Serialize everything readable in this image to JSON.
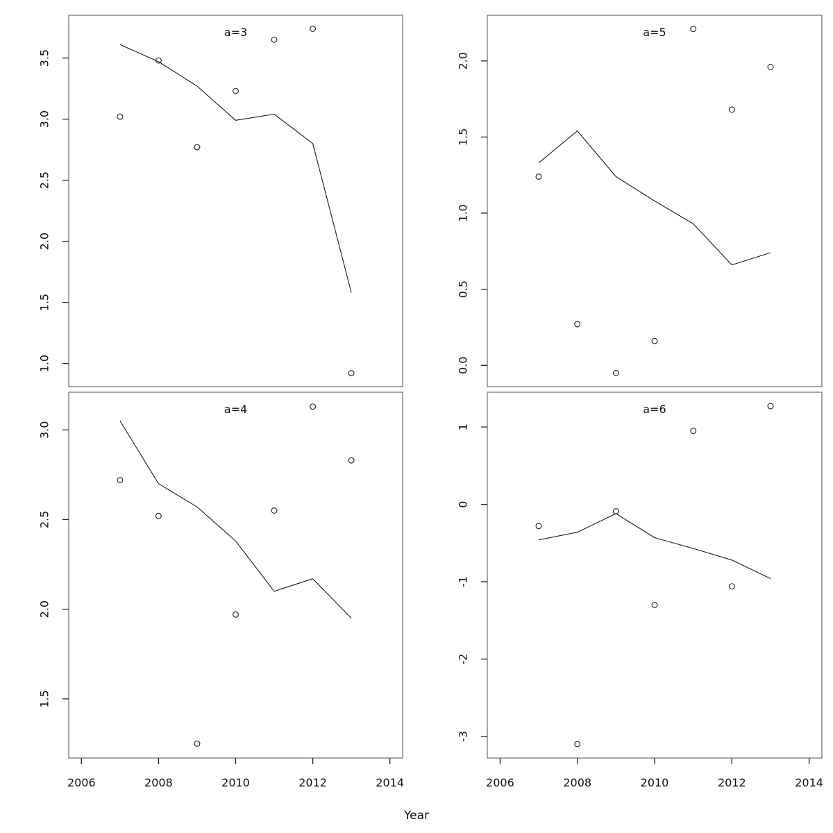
{
  "figure": {
    "type": "r-base-multipanel-plot",
    "xlabel": "Year"
  },
  "chart_data": {
    "type": "scatter",
    "title": "",
    "xlabel": "Year",
    "ylabel": "",
    "grid": false,
    "legend_position": "none",
    "x": [
      2007,
      2008,
      2009,
      2010,
      2011,
      2012,
      2013
    ],
    "xticks": [
      "2006",
      "2008",
      "2010",
      "2012",
      "2014"
    ],
    "xtick_values": [
      2006,
      2008,
      2010,
      2012,
      2014
    ],
    "xlim": [
      2005.67,
      2014.33
    ],
    "panels": [
      {
        "label": "a=3",
        "position": "top-left",
        "ylim": [
          0.81,
          3.85
        ],
        "yticks": [
          "1.0",
          "1.5",
          "2.0",
          "2.5",
          "3.0",
          "3.5"
        ],
        "series": [
          {
            "name": "observations",
            "type": "points",
            "values": [
              3.02,
              3.48,
              2.77,
              3.23,
              3.65,
              3.74,
              0.92
            ]
          },
          {
            "name": "fit-line",
            "type": "line",
            "values": [
              3.61,
              3.47,
              3.27,
              2.99,
              3.04,
              2.8,
              1.58
            ]
          }
        ]
      },
      {
        "label": "a=4",
        "position": "bottom-left",
        "ylim": [
          1.17,
          3.21
        ],
        "yticks": [
          "1.5",
          "2.0",
          "2.5",
          "3.0"
        ],
        "series": [
          {
            "name": "observations",
            "type": "points",
            "values": [
              2.72,
              2.52,
              1.25,
              1.97,
              2.55,
              3.13,
              2.83
            ]
          },
          {
            "name": "fit-line",
            "type": "line",
            "values": [
              3.05,
              2.7,
              2.57,
              2.38,
              2.1,
              2.17,
              1.95
            ]
          }
        ]
      },
      {
        "label": "a=5",
        "position": "top-right",
        "ylim": [
          -0.14,
          2.3
        ],
        "yticks": [
          "0.0",
          "0.5",
          "1.0",
          "1.5",
          "2.0"
        ],
        "series": [
          {
            "name": "observations",
            "type": "points",
            "values": [
              1.24,
              0.27,
              -0.05,
              0.16,
              2.21,
              1.68,
              1.96
            ]
          },
          {
            "name": "fit-line",
            "type": "line",
            "values": [
              1.33,
              1.54,
              1.24,
              1.08,
              0.93,
              0.66,
              0.74
            ]
          }
        ]
      },
      {
        "label": "a=6",
        "position": "bottom-right",
        "ylim": [
          -3.28,
          1.45
        ],
        "yticks": [
          "-3",
          "-2",
          "-1",
          "0",
          "1"
        ],
        "series": [
          {
            "name": "observations",
            "type": "points",
            "values": [
              -0.28,
              -3.1,
              -0.09,
              -1.3,
              0.95,
              -1.06,
              1.27
            ]
          },
          {
            "name": "fit-line",
            "type": "line",
            "values": [
              -0.46,
              -0.36,
              -0.12,
              -0.43,
              -0.57,
              -0.72,
              -0.96
            ]
          }
        ]
      }
    ],
    "colors": {
      "background": "#ffffff",
      "panel_border": "#757575",
      "tick": "#222222",
      "tick_label": "#111111",
      "axis_label": "#111111",
      "panel_label": "#888888",
      "point_stroke": "#2b2b2b",
      "line": "#1a1a1a"
    }
  }
}
